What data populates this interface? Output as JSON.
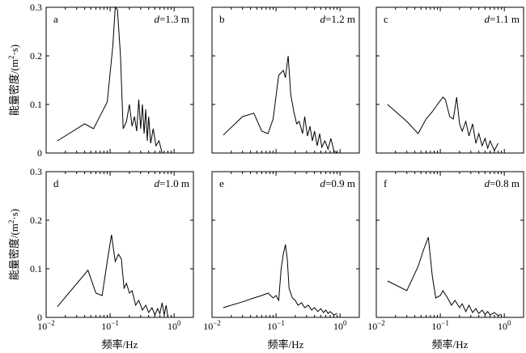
{
  "figure": {
    "ylabel_html": "能量密度/(m²·s)",
    "xlabel": "频率/Hz"
  },
  "chart_data": [
    {
      "type": "line",
      "panel_letter": "a",
      "depth_label": "d=1.3 m",
      "xscale": "log",
      "xlim": [
        0.01,
        2
      ],
      "ylim": [
        0,
        0.3
      ],
      "x": [
        0.015,
        0.04,
        0.055,
        0.09,
        0.11,
        0.12,
        0.13,
        0.145,
        0.16,
        0.18,
        0.2,
        0.22,
        0.24,
        0.26,
        0.28,
        0.3,
        0.32,
        0.34,
        0.36,
        0.38,
        0.4,
        0.43,
        0.47,
        0.52,
        0.58,
        0.65
      ],
      "y": [
        0.025,
        0.06,
        0.05,
        0.105,
        0.22,
        0.3,
        0.295,
        0.2,
        0.05,
        0.065,
        0.1,
        0.055,
        0.075,
        0.045,
        0.11,
        0.05,
        0.1,
        0.04,
        0.09,
        0.025,
        0.075,
        0.02,
        0.05,
        0.015,
        0.025,
        0.0
      ]
    },
    {
      "type": "line",
      "panel_letter": "b",
      "depth_label": "d=1.2 m",
      "xscale": "log",
      "xlim": [
        0.01,
        2
      ],
      "ylim": [
        0,
        0.3
      ],
      "x": [
        0.015,
        0.03,
        0.045,
        0.06,
        0.075,
        0.09,
        0.11,
        0.13,
        0.14,
        0.155,
        0.17,
        0.19,
        0.21,
        0.23,
        0.26,
        0.28,
        0.31,
        0.34,
        0.37,
        0.4,
        0.44,
        0.48,
        0.52,
        0.58,
        0.65,
        0.72,
        0.8,
        0.9
      ],
      "y": [
        0.037,
        0.075,
        0.082,
        0.045,
        0.04,
        0.07,
        0.16,
        0.17,
        0.155,
        0.2,
        0.12,
        0.085,
        0.06,
        0.065,
        0.04,
        0.075,
        0.035,
        0.055,
        0.025,
        0.045,
        0.015,
        0.04,
        0.012,
        0.025,
        0.008,
        0.03,
        0.005,
        0.0
      ]
    },
    {
      "type": "line",
      "panel_letter": "c",
      "depth_label": "d=1.1 m",
      "xscale": "log",
      "xlim": [
        0.01,
        2
      ],
      "ylim": [
        0,
        0.3
      ],
      "x": [
        0.015,
        0.03,
        0.045,
        0.06,
        0.075,
        0.09,
        0.11,
        0.12,
        0.14,
        0.16,
        0.18,
        0.2,
        0.22,
        0.25,
        0.28,
        0.32,
        0.36,
        0.4,
        0.45,
        0.5,
        0.55,
        0.6,
        0.7,
        0.8
      ],
      "y": [
        0.1,
        0.065,
        0.04,
        0.07,
        0.085,
        0.1,
        0.115,
        0.11,
        0.075,
        0.07,
        0.115,
        0.06,
        0.045,
        0.065,
        0.035,
        0.06,
        0.02,
        0.04,
        0.015,
        0.03,
        0.01,
        0.025,
        0.005,
        0.02
      ]
    },
    {
      "type": "line",
      "panel_letter": "d",
      "depth_label": "d=1.0 m",
      "xscale": "log",
      "xlim": [
        0.01,
        2
      ],
      "ylim": [
        0,
        0.3
      ],
      "x": [
        0.015,
        0.045,
        0.06,
        0.075,
        0.09,
        0.105,
        0.12,
        0.135,
        0.15,
        0.165,
        0.18,
        0.2,
        0.22,
        0.25,
        0.28,
        0.32,
        0.36,
        0.4,
        0.45,
        0.5,
        0.55,
        0.6,
        0.65,
        0.7,
        0.75,
        0.8
      ],
      "y": [
        0.022,
        0.097,
        0.05,
        0.045,
        0.115,
        0.17,
        0.115,
        0.13,
        0.12,
        0.06,
        0.07,
        0.05,
        0.055,
        0.025,
        0.035,
        0.015,
        0.025,
        0.01,
        0.02,
        0.005,
        0.018,
        0.008,
        0.03,
        0.005,
        0.025,
        0.0
      ]
    },
    {
      "type": "line",
      "panel_letter": "e",
      "depth_label": "d=0.9 m",
      "xscale": "log",
      "xlim": [
        0.01,
        2
      ],
      "ylim": [
        0,
        0.3
      ],
      "x": [
        0.015,
        0.03,
        0.045,
        0.06,
        0.075,
        0.09,
        0.1,
        0.11,
        0.12,
        0.13,
        0.14,
        0.15,
        0.16,
        0.18,
        0.2,
        0.22,
        0.25,
        0.28,
        0.32,
        0.36,
        0.4,
        0.45,
        0.5,
        0.55,
        0.6,
        0.65,
        0.7,
        0.8,
        0.9
      ],
      "y": [
        0.02,
        0.032,
        0.04,
        0.045,
        0.05,
        0.04,
        0.045,
        0.035,
        0.1,
        0.13,
        0.15,
        0.12,
        0.06,
        0.04,
        0.035,
        0.025,
        0.03,
        0.02,
        0.025,
        0.015,
        0.02,
        0.012,
        0.018,
        0.01,
        0.015,
        0.008,
        0.012,
        0.005,
        0.008
      ]
    },
    {
      "type": "line",
      "panel_letter": "f",
      "depth_label": "d=0.8 m",
      "xscale": "log",
      "xlim": [
        0.01,
        2
      ],
      "ylim": [
        0,
        0.3
      ],
      "x": [
        0.015,
        0.03,
        0.045,
        0.055,
        0.065,
        0.075,
        0.085,
        0.1,
        0.11,
        0.13,
        0.15,
        0.17,
        0.2,
        0.22,
        0.25,
        0.28,
        0.32,
        0.36,
        0.4,
        0.45,
        0.5,
        0.55,
        0.6,
        0.7,
        0.8,
        0.9
      ],
      "y": [
        0.075,
        0.055,
        0.105,
        0.14,
        0.165,
        0.085,
        0.04,
        0.045,
        0.055,
        0.04,
        0.025,
        0.035,
        0.02,
        0.028,
        0.012,
        0.025,
        0.01,
        0.018,
        0.008,
        0.015,
        0.006,
        0.012,
        0.005,
        0.01,
        0.004,
        0.006
      ]
    }
  ],
  "ticks": {
    "y": [
      {
        "v": 0,
        "label": "0"
      },
      {
        "v": 0.1,
        "label": "0.1"
      },
      {
        "v": 0.2,
        "label": "0.2"
      },
      {
        "v": 0.3,
        "label": "0.3"
      }
    ],
    "x_major": [
      {
        "v": 0.01,
        "mant": "10",
        "exp": "−2"
      },
      {
        "v": 0.1,
        "mant": "10",
        "exp": "−1"
      },
      {
        "v": 1,
        "mant": "10",
        "exp": "0"
      }
    ]
  }
}
